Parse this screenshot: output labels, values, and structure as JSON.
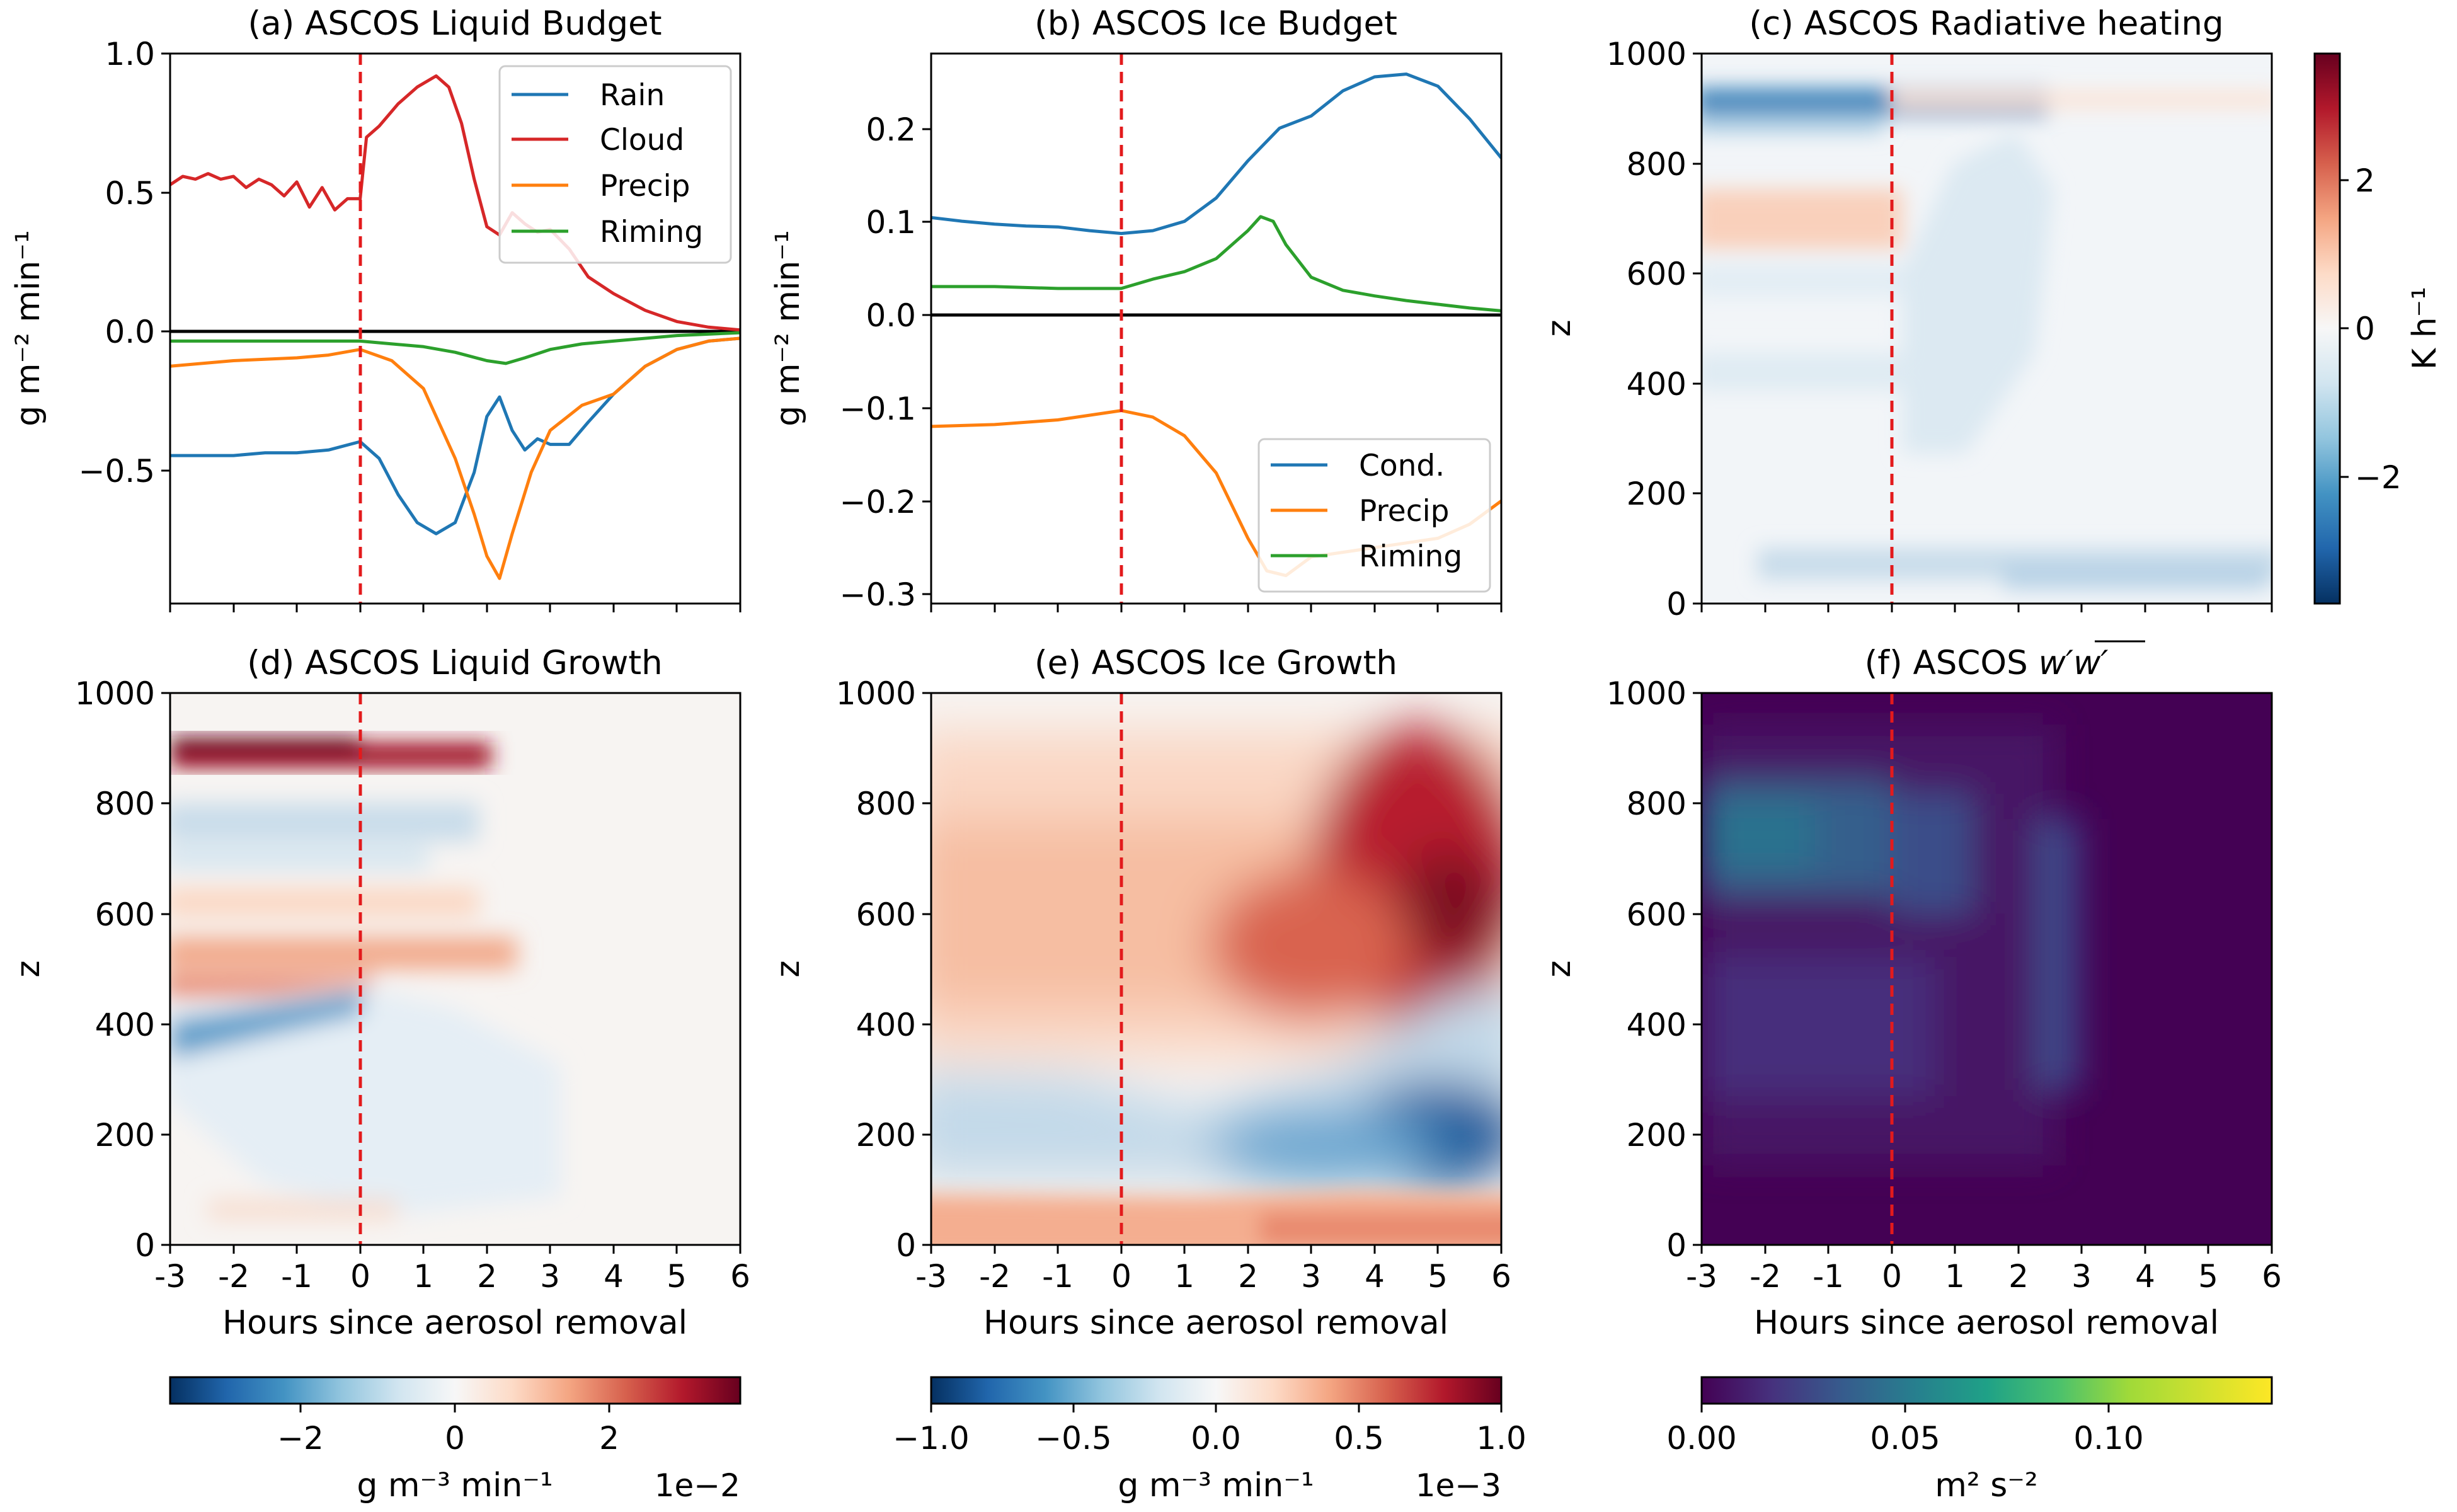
{
  "figure": {
    "panels": [
      {
        "id": "a",
        "title": "(a) ASCOS Liquid Budget",
        "ylabel": "g m⁻² min⁻¹"
      },
      {
        "id": "b",
        "title": "(b) ASCOS Ice Budget",
        "ylabel": "g m⁻² min⁻¹"
      },
      {
        "id": "c",
        "title": "(c) ASCOS Radiative heating",
        "ylabel": "z",
        "cbar_label": "K h⁻¹"
      },
      {
        "id": "d",
        "title": "(d) ASCOS Liquid Growth",
        "ylabel": "z",
        "xlabel": "Hours since aerosol removal",
        "cbar_label": "g m⁻³ min⁻¹",
        "cbar_offset": "1e−2"
      },
      {
        "id": "e",
        "title": "(e) ASCOS Ice Growth",
        "ylabel": "z",
        "xlabel": "Hours since aerosol removal",
        "cbar_label": "g m⁻³ min⁻¹",
        "cbar_offset": "1e−3"
      },
      {
        "id": "f",
        "title_prefix": "(f) ASCOS ",
        "title_math": "w′w′",
        "ylabel": "z",
        "xlabel": "Hours since aerosol removal",
        "cbar_label": "m² s⁻²"
      }
    ],
    "x_tick_labels": [
      "-3",
      "-2",
      "-1",
      "0",
      "1",
      "2",
      "3",
      "4",
      "5",
      "6"
    ],
    "z_tick_labels": [
      "0",
      "200",
      "400",
      "600",
      "800",
      "1000"
    ],
    "colors": {
      "rain": "#1f77b4",
      "cloud": "#d62728",
      "precip": "#ff7f0e",
      "riming": "#2ca02c",
      "marker": "#e31a1c",
      "zero": "#000000"
    }
  },
  "chart_data": [
    {
      "panel": "a",
      "type": "line",
      "xlim": [
        -3,
        6
      ],
      "ylim": [
        -0.97,
        1.0
      ],
      "y_ticks": [
        -0.5,
        0.0,
        0.5,
        1.0
      ],
      "y_tick_labels": [
        "−0.5",
        "0.0",
        "0.5",
        "1.0"
      ],
      "vline": 0,
      "hline": 0,
      "legend": "upper-right",
      "series": [
        {
          "name": "Rain",
          "color": "#1f77b4",
          "x": [
            -3,
            -2.5,
            -2,
            -1.5,
            -1,
            -0.5,
            0,
            0.3,
            0.6,
            0.9,
            1.2,
            1.5,
            1.8,
            2.0,
            2.2,
            2.4,
            2.6,
            2.8,
            3.0,
            3.3,
            3.6,
            4.0,
            4.5,
            5.0,
            5.5,
            6.0
          ],
          "y": [
            -0.44,
            -0.44,
            -0.44,
            -0.43,
            -0.43,
            -0.42,
            -0.39,
            -0.45,
            -0.58,
            -0.68,
            -0.72,
            -0.68,
            -0.5,
            -0.3,
            -0.23,
            -0.35,
            -0.42,
            -0.38,
            -0.4,
            -0.4,
            -0.32,
            -0.22,
            -0.12,
            -0.06,
            -0.03,
            -0.02
          ]
        },
        {
          "name": "Cloud",
          "color": "#d62728",
          "x": [
            -3,
            -2.8,
            -2.6,
            -2.4,
            -2.2,
            -2.0,
            -1.8,
            -1.6,
            -1.4,
            -1.2,
            -1.0,
            -0.8,
            -0.6,
            -0.4,
            -0.2,
            0.0,
            0.1,
            0.3,
            0.6,
            0.9,
            1.2,
            1.4,
            1.6,
            1.8,
            2.0,
            2.2,
            2.4,
            2.6,
            2.8,
            3.0,
            3.3,
            3.6,
            4.0,
            4.5,
            5.0,
            5.5,
            6.0
          ],
          "y": [
            0.53,
            0.56,
            0.55,
            0.57,
            0.55,
            0.56,
            0.52,
            0.55,
            0.53,
            0.49,
            0.54,
            0.45,
            0.52,
            0.44,
            0.48,
            0.48,
            0.7,
            0.74,
            0.82,
            0.88,
            0.92,
            0.88,
            0.75,
            0.55,
            0.38,
            0.35,
            0.43,
            0.39,
            0.36,
            0.37,
            0.3,
            0.2,
            0.14,
            0.08,
            0.04,
            0.02,
            0.01
          ]
        },
        {
          "name": "Precip",
          "color": "#ff7f0e",
          "x": [
            -3,
            -2,
            -1,
            -0.5,
            0,
            0.5,
            1.0,
            1.5,
            1.8,
            2.0,
            2.2,
            2.4,
            2.7,
            3.0,
            3.5,
            4.0,
            4.5,
            5.0,
            5.5,
            6.0
          ],
          "y": [
            -0.12,
            -0.1,
            -0.09,
            -0.08,
            -0.06,
            -0.1,
            -0.2,
            -0.45,
            -0.65,
            -0.8,
            -0.88,
            -0.72,
            -0.5,
            -0.35,
            -0.26,
            -0.22,
            -0.12,
            -0.06,
            -0.03,
            -0.02
          ]
        },
        {
          "name": "Riming",
          "color": "#2ca02c",
          "x": [
            -3,
            -2,
            -1,
            0,
            0.5,
            1.0,
            1.5,
            2.0,
            2.3,
            2.6,
            3.0,
            3.5,
            4.0,
            5.0,
            6.0
          ],
          "y": [
            -0.03,
            -0.03,
            -0.03,
            -0.03,
            -0.04,
            -0.05,
            -0.07,
            -0.1,
            -0.11,
            -0.09,
            -0.06,
            -0.04,
            -0.03,
            -0.01,
            0.0
          ]
        }
      ]
    },
    {
      "panel": "b",
      "type": "line",
      "xlim": [
        -3,
        6
      ],
      "ylim": [
        -0.31,
        0.28
      ],
      "y_ticks": [
        -0.3,
        -0.2,
        -0.1,
        0.0,
        0.1,
        0.2
      ],
      "y_tick_labels": [
        "−0.3",
        "−0.2",
        "−0.1",
        "0.0",
        "0.1",
        "0.2"
      ],
      "vline": 0,
      "hline": 0,
      "legend": "lower-right",
      "series": [
        {
          "name": "Cond.",
          "color": "#1f77b4",
          "x": [
            -3,
            -2.5,
            -2,
            -1.5,
            -1,
            -0.5,
            0,
            0.5,
            1.0,
            1.5,
            2.0,
            2.5,
            3.0,
            3.5,
            4.0,
            4.5,
            5.0,
            5.5,
            6.0
          ],
          "y": [
            0.104,
            0.1,
            0.097,
            0.095,
            0.094,
            0.09,
            0.087,
            0.09,
            0.1,
            0.125,
            0.165,
            0.2,
            0.213,
            0.24,
            0.255,
            0.258,
            0.245,
            0.21,
            0.168
          ]
        },
        {
          "name": "Precip",
          "color": "#ff7f0e",
          "x": [
            -3,
            -2,
            -1,
            -0.5,
            0,
            0.5,
            1.0,
            1.5,
            2.0,
            2.3,
            2.6,
            3.0,
            3.5,
            4.0,
            4.5,
            5.0,
            5.5,
            6.0
          ],
          "y": [
            -0.12,
            -0.118,
            -0.113,
            -0.108,
            -0.103,
            -0.11,
            -0.13,
            -0.17,
            -0.24,
            -0.275,
            -0.28,
            -0.26,
            -0.255,
            -0.25,
            -0.245,
            -0.24,
            -0.225,
            -0.2
          ]
        },
        {
          "name": "Riming",
          "color": "#2ca02c",
          "x": [
            -3,
            -2,
            -1,
            0,
            0.5,
            1.0,
            1.5,
            2.0,
            2.2,
            2.4,
            2.6,
            3.0,
            3.5,
            4.0,
            4.5,
            5.0,
            5.5,
            6.0
          ],
          "y": [
            0.03,
            0.03,
            0.028,
            0.028,
            0.038,
            0.046,
            0.06,
            0.09,
            0.105,
            0.1,
            0.075,
            0.04,
            0.026,
            0.02,
            0.015,
            0.011,
            0.007,
            0.004
          ]
        }
      ]
    },
    {
      "panel": "c",
      "type": "heatmap",
      "colormap": "RdBu_r",
      "xlim": [
        -3,
        6
      ],
      "ylim": [
        0,
        1000
      ],
      "vline": 0,
      "colorbar": {
        "orientation": "vertical",
        "range": [
          -3.7,
          3.7
        ],
        "ticks": [
          -2,
          0,
          2
        ],
        "tick_labels": [
          "−2",
          "0",
          "2"
        ],
        "label": "K h⁻¹"
      },
      "features": [
        {
          "t": [
            -3,
            1.8
          ],
          "z": [
            885,
            940
          ],
          "value": -3.0
        },
        {
          "t": [
            -3,
            0.2
          ],
          "z": [
            660,
            780
          ],
          "value": 1.0
        },
        {
          "t": [
            0.2,
            6
          ],
          "z": [
            890,
            940
          ],
          "value": 0.4
        },
        {
          "t": [
            0.5,
            2.0
          ],
          "z": [
            500,
            860
          ],
          "value": -0.4
        },
        {
          "t": [
            -3,
            6
          ],
          "z": [
            20,
            90
          ],
          "value": -0.7
        }
      ]
    },
    {
      "panel": "d",
      "type": "heatmap",
      "colormap": "RdBu_r",
      "xlim": [
        -3,
        6
      ],
      "ylim": [
        0,
        1000
      ],
      "vline": 0,
      "colorbar": {
        "orientation": "horizontal",
        "range": [
          -3.7,
          3.7
        ],
        "ticks": [
          -2,
          0,
          2
        ],
        "tick_labels": [
          "−2",
          "0",
          "2"
        ],
        "label": "g m⁻³ min⁻¹",
        "offset": "1e−2"
      },
      "features": [
        {
          "t": [
            -3,
            1.8
          ],
          "z": [
            870,
            920
          ],
          "value": 3.5
        },
        {
          "t": [
            -3,
            1.0
          ],
          "z": [
            700,
            820
          ],
          "value": -1.0
        },
        {
          "t": [
            -3,
            1.5
          ],
          "z": [
            480,
            560
          ],
          "value": 1.5
        },
        {
          "t": [
            -3,
            0
          ],
          "z": [
            420,
            470
          ],
          "value": 2.8
        },
        {
          "t": [
            -3,
            0
          ],
          "z": [
            370,
            420
          ],
          "value": -2.0
        },
        {
          "t": [
            0,
            3
          ],
          "z": [
            100,
            420
          ],
          "value": -0.6
        }
      ]
    },
    {
      "panel": "e",
      "type": "heatmap",
      "colormap": "RdBu_r",
      "xlim": [
        -3,
        6
      ],
      "ylim": [
        0,
        1000
      ],
      "vline": 0,
      "colorbar": {
        "orientation": "horizontal",
        "range": [
          -1.0,
          1.0
        ],
        "ticks": [
          -1.0,
          -0.5,
          0.0,
          0.5,
          1.0
        ],
        "tick_labels": [
          "−1.0",
          "−0.5",
          "0.0",
          "0.5",
          "1.0"
        ],
        "label": "g m⁻³ min⁻¹",
        "offset": "1e−3"
      },
      "features": [
        {
          "t": [
            -3,
            6
          ],
          "z": [
            350,
            900
          ],
          "value": 0.3
        },
        {
          "t": [
            3.5,
            6
          ],
          "z": [
            450,
            850
          ],
          "value": 0.9
        },
        {
          "t": [
            -3,
            6
          ],
          "z": [
            110,
            320
          ],
          "value": -0.3
        },
        {
          "t": [
            4,
            6
          ],
          "z": [
            100,
            380
          ],
          "value": -0.9
        },
        {
          "t": [
            -3,
            6
          ],
          "z": [
            0,
            100
          ],
          "value": 0.4
        }
      ]
    },
    {
      "panel": "f",
      "type": "heatmap",
      "colormap": "viridis",
      "xlim": [
        -3,
        6
      ],
      "ylim": [
        0,
        1000
      ],
      "vline": 0,
      "colorbar": {
        "orientation": "horizontal",
        "range": [
          0.0,
          0.14
        ],
        "ticks": [
          0.0,
          0.05,
          0.1
        ],
        "tick_labels": [
          "0.00",
          "0.05",
          "0.10"
        ],
        "label": "m² s⁻²"
      },
      "features": [
        {
          "t": [
            -3,
            -1
          ],
          "z": [
            600,
            850
          ],
          "value": 0.05
        },
        {
          "t": [
            -1,
            0.5
          ],
          "z": [
            550,
            850
          ],
          "value": 0.03
        },
        {
          "t": [
            1.5,
            2.5
          ],
          "z": [
            150,
            800
          ],
          "value": 0.02
        },
        {
          "t": [
            -3,
            1
          ],
          "z": [
            150,
            500
          ],
          "value": 0.015
        }
      ]
    }
  ]
}
